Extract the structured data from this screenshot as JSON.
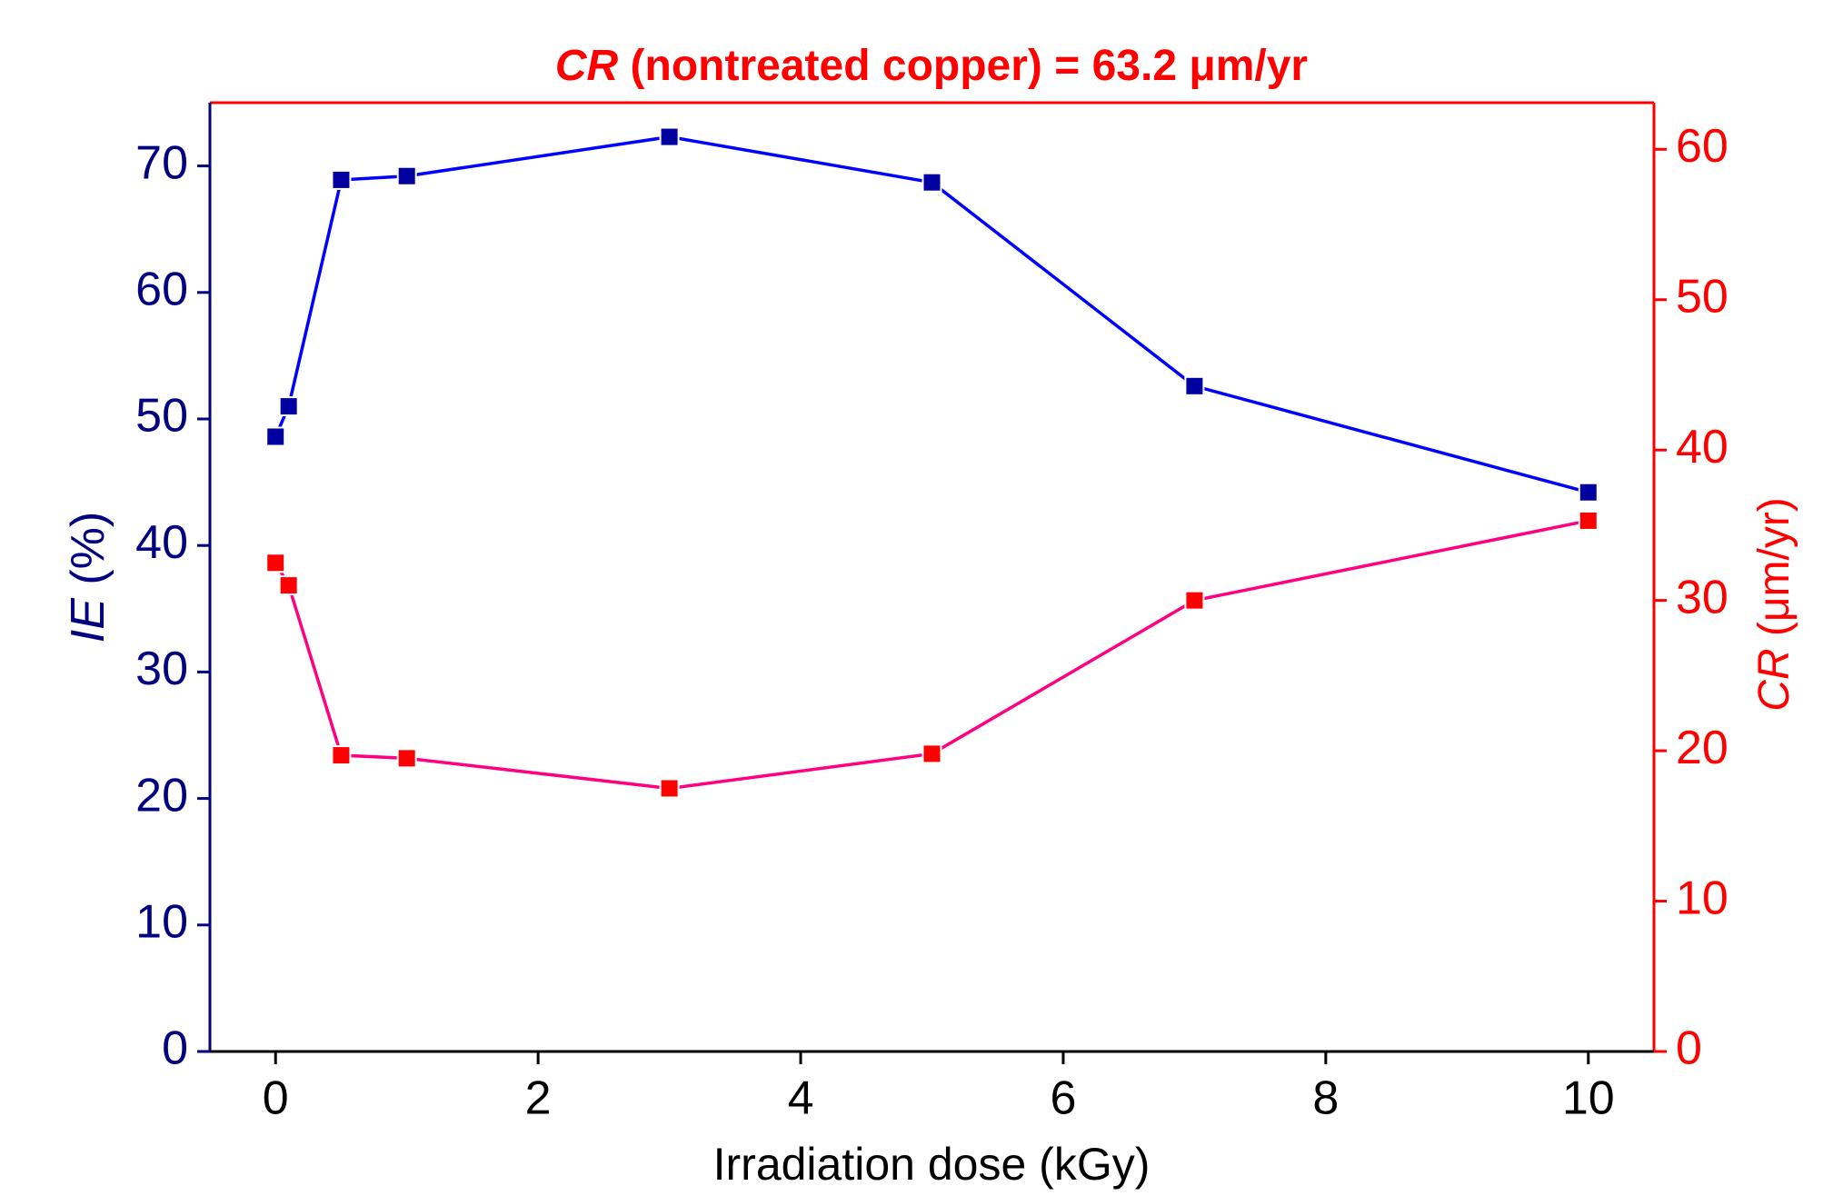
{
  "chart_data": {
    "type": "line",
    "title": {
      "italic": "CR",
      "text": " (nontreated copper) = 63.2 μm/yr"
    },
    "xlabel": "Irradiation dose (kGy)",
    "ylabel": {
      "italic": "IE",
      "text": " (%)"
    },
    "y2label": {
      "italic": "CR",
      "text": " (μm/yr)"
    },
    "x": [
      0,
      0.1,
      0.5,
      1,
      3,
      5,
      7,
      10
    ],
    "series": [
      {
        "name": "IE",
        "color": "#0000a0",
        "line_color": "#0000ff",
        "axis": "y",
        "values": [
          48.6,
          51,
          68.9,
          69.2,
          72.3,
          68.7,
          52.6,
          44.2
        ]
      },
      {
        "name": "CR",
        "color": "#ff0000",
        "line_color": "#ff0080",
        "axis": "y2",
        "values": [
          32.5,
          31,
          19.7,
          19.5,
          17.5,
          19.8,
          30,
          35.3
        ]
      }
    ],
    "xlim": [
      -0.5,
      10.5
    ],
    "xticks": [
      0,
      2,
      4,
      6,
      8,
      10
    ],
    "ylim": [
      0,
      75
    ],
    "yticks": [
      0,
      10,
      20,
      30,
      40,
      50,
      60,
      70
    ],
    "y2lim": [
      0,
      63.1
    ],
    "y2ticks": [
      0,
      10,
      20,
      30,
      40,
      50,
      60
    ],
    "y_color": "#000080",
    "y2_color": "#ff0000",
    "title_color": "#ff0000"
  }
}
